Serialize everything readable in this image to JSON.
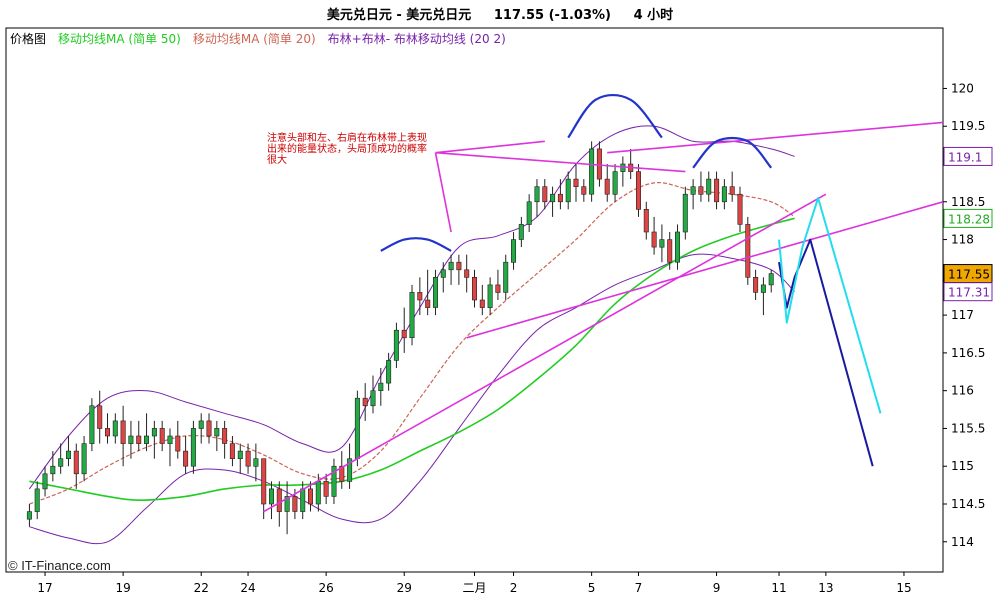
{
  "header": {
    "title": "美元兑日元 - 美元兑日元     117.55 (-1.03%)     4 小时"
  },
  "chart_data": {
    "type": "candlestick",
    "legend": {
      "items": [
        {
          "label": "价格图",
          "color": "#000000"
        },
        {
          "label": "移动均线MA (简单 50)",
          "color": "#22cc22"
        },
        {
          "label": "移动均线MA (简单 20)",
          "color": "#cc6655"
        },
        {
          "label": "布林+布林- 布林移动均线 (20 2)",
          "color": "#7722aa"
        }
      ],
      "placement": "top-left"
    },
    "annotation": "注意头部和左、右肩在布林带上表现出来的能量状态，头局顶成功的概率很大",
    "watermark": "© IT-Finance.com",
    "y_axis": {
      "ticks": [
        120,
        119.5,
        119,
        118.5,
        118,
        117.5,
        117,
        116.5,
        116,
        115.5,
        115,
        114.5,
        114
      ],
      "tick_labels": [
        "120",
        "119.5",
        "",
        "118.5",
        "118",
        "",
        "117",
        "116.5",
        "116",
        "115.5",
        "115",
        "114.5",
        "114"
      ],
      "ylim": [
        113.6,
        120.8
      ],
      "markers": [
        {
          "value": 119.1,
          "label": "119.1",
          "color": "#7722aa"
        },
        {
          "value": 118.28,
          "label": "118.28",
          "color": "#22aa22"
        },
        {
          "value": 117.55,
          "label": "117.55",
          "color": "#000000",
          "fill": "#f0a800"
        },
        {
          "value": 117.31,
          "label": "117.31",
          "color": "#7722aa"
        }
      ]
    },
    "x_axis": {
      "ticks": [
        {
          "index": 2,
          "label": "17"
        },
        {
          "index": 12,
          "label": "19"
        },
        {
          "index": 22,
          "label": "22"
        },
        {
          "index": 28,
          "label": "24"
        },
        {
          "index": 38,
          "label": "26"
        },
        {
          "index": 48,
          "label": "29"
        },
        {
          "index": 57,
          "label": "二月"
        },
        {
          "index": 62,
          "label": "2"
        },
        {
          "index": 72,
          "label": "5"
        },
        {
          "index": 78,
          "label": "7"
        },
        {
          "index": 88,
          "label": "9"
        },
        {
          "index": 96,
          "label": "11"
        },
        {
          "index": 102,
          "label": "13"
        },
        {
          "index": 112,
          "label": "15"
        }
      ],
      "xlim": [
        -3,
        117
      ]
    },
    "candles": [
      [
        114.3,
        114.5,
        114.2,
        114.4
      ],
      [
        114.4,
        114.8,
        114.3,
        114.7
      ],
      [
        114.7,
        115.0,
        114.6,
        114.9
      ],
      [
        114.9,
        115.2,
        114.8,
        115.0
      ],
      [
        115.0,
        115.3,
        114.9,
        115.1
      ],
      [
        115.1,
        115.4,
        115.0,
        115.2
      ],
      [
        115.2,
        115.3,
        114.7,
        114.9
      ],
      [
        114.9,
        115.4,
        114.8,
        115.3
      ],
      [
        115.3,
        115.9,
        115.2,
        115.8
      ],
      [
        115.8,
        116.0,
        115.3,
        115.5
      ],
      [
        115.5,
        115.7,
        115.3,
        115.4
      ],
      [
        115.4,
        115.7,
        115.3,
        115.6
      ],
      [
        115.6,
        115.8,
        115.0,
        115.3
      ],
      [
        115.3,
        115.6,
        115.1,
        115.4
      ],
      [
        115.4,
        115.6,
        115.2,
        115.3
      ],
      [
        115.3,
        115.7,
        115.2,
        115.4
      ],
      [
        115.4,
        115.6,
        115.1,
        115.5
      ],
      [
        115.5,
        115.6,
        115.2,
        115.3
      ],
      [
        115.3,
        115.5,
        115.0,
        115.4
      ],
      [
        115.4,
        115.6,
        115.1,
        115.2
      ],
      [
        115.2,
        115.4,
        114.9,
        115.0
      ],
      [
        115.0,
        115.6,
        114.9,
        115.5
      ],
      [
        115.5,
        115.7,
        115.3,
        115.6
      ],
      [
        115.6,
        115.7,
        115.3,
        115.4
      ],
      [
        115.4,
        115.6,
        115.2,
        115.5
      ],
      [
        115.5,
        115.6,
        115.1,
        115.3
      ],
      [
        115.3,
        115.4,
        115.0,
        115.1
      ],
      [
        115.1,
        115.3,
        114.9,
        115.2
      ],
      [
        115.2,
        115.3,
        114.9,
        115.0
      ],
      [
        115.0,
        115.3,
        114.8,
        115.1
      ],
      [
        115.1,
        115.1,
        114.3,
        114.5
      ],
      [
        114.5,
        114.8,
        114.3,
        114.7
      ],
      [
        114.7,
        114.8,
        114.2,
        114.4
      ],
      [
        114.4,
        114.8,
        114.1,
        114.6
      ],
      [
        114.6,
        114.7,
        114.3,
        114.4
      ],
      [
        114.4,
        114.8,
        114.3,
        114.7
      ],
      [
        114.7,
        114.8,
        114.4,
        114.5
      ],
      [
        114.5,
        114.9,
        114.4,
        114.8
      ],
      [
        114.8,
        114.9,
        114.5,
        114.6
      ],
      [
        114.6,
        115.1,
        114.5,
        115.0
      ],
      [
        115.0,
        115.2,
        114.7,
        114.8
      ],
      [
        114.8,
        115.3,
        114.7,
        115.1
      ],
      [
        115.1,
        116.0,
        115.0,
        115.9
      ],
      [
        115.9,
        116.1,
        115.6,
        115.8
      ],
      [
        115.8,
        116.2,
        115.7,
        116.0
      ],
      [
        116.0,
        116.3,
        115.8,
        116.1
      ],
      [
        116.1,
        116.5,
        116.0,
        116.4
      ],
      [
        116.4,
        116.9,
        116.3,
        116.8
      ],
      [
        116.8,
        117.1,
        116.5,
        116.7
      ],
      [
        116.7,
        117.4,
        116.6,
        117.3
      ],
      [
        117.3,
        117.5,
        117.0,
        117.2
      ],
      [
        117.2,
        117.6,
        117.0,
        117.1
      ],
      [
        117.1,
        117.6,
        117.0,
        117.5
      ],
      [
        117.5,
        117.7,
        117.3,
        117.6
      ],
      [
        117.6,
        117.8,
        117.4,
        117.7
      ],
      [
        117.7,
        117.8,
        117.4,
        117.6
      ],
      [
        117.6,
        117.8,
        117.3,
        117.5
      ],
      [
        117.5,
        117.6,
        117.1,
        117.2
      ],
      [
        117.2,
        117.4,
        117.0,
        117.1
      ],
      [
        117.1,
        117.5,
        117.0,
        117.4
      ],
      [
        117.4,
        117.6,
        117.2,
        117.3
      ],
      [
        117.3,
        117.8,
        117.2,
        117.7
      ],
      [
        117.7,
        118.1,
        117.6,
        118.0
      ],
      [
        118.0,
        118.3,
        117.9,
        118.2
      ],
      [
        118.2,
        118.6,
        118.1,
        118.5
      ],
      [
        118.5,
        118.8,
        118.3,
        118.7
      ],
      [
        118.7,
        118.8,
        118.4,
        118.5
      ],
      [
        118.5,
        118.7,
        118.3,
        118.6
      ],
      [
        118.6,
        118.8,
        118.4,
        118.5
      ],
      [
        118.5,
        118.9,
        118.4,
        118.8
      ],
      [
        118.8,
        119.0,
        118.5,
        118.7
      ],
      [
        118.7,
        118.8,
        118.5,
        118.6
      ],
      [
        118.6,
        119.3,
        118.5,
        119.2
      ],
      [
        119.2,
        119.3,
        118.7,
        118.8
      ],
      [
        118.8,
        119.0,
        118.5,
        118.6
      ],
      [
        118.6,
        119.0,
        118.5,
        118.9
      ],
      [
        118.9,
        119.1,
        118.7,
        119.0
      ],
      [
        119.0,
        119.2,
        118.8,
        118.9
      ],
      [
        118.9,
        119.0,
        118.3,
        118.4
      ],
      [
        118.4,
        118.5,
        118.0,
        118.1
      ],
      [
        118.1,
        118.3,
        117.8,
        117.9
      ],
      [
        117.9,
        118.2,
        117.7,
        118.0
      ],
      [
        118.0,
        118.1,
        117.6,
        117.7
      ],
      [
        117.7,
        118.2,
        117.6,
        118.1
      ],
      [
        118.1,
        118.7,
        118.0,
        118.6
      ],
      [
        118.6,
        118.8,
        118.4,
        118.7
      ],
      [
        118.7,
        118.9,
        118.5,
        118.6
      ],
      [
        118.6,
        118.9,
        118.5,
        118.8
      ],
      [
        118.8,
        118.9,
        118.4,
        118.5
      ],
      [
        118.5,
        118.8,
        118.4,
        118.7
      ],
      [
        118.7,
        118.9,
        118.5,
        118.6
      ],
      [
        118.6,
        118.7,
        118.1,
        118.2
      ],
      [
        118.2,
        118.3,
        117.4,
        117.5
      ],
      [
        117.5,
        117.6,
        117.2,
        117.3
      ],
      [
        117.3,
        117.5,
        117.0,
        117.4
      ],
      [
        117.4,
        117.6,
        117.3,
        117.55
      ]
    ],
    "sma50": [
      [
        0,
        114.8
      ],
      [
        5,
        114.7
      ],
      [
        10,
        114.6
      ],
      [
        14,
        114.55
      ],
      [
        20,
        114.6
      ],
      [
        25,
        114.7
      ],
      [
        30,
        114.75
      ],
      [
        34,
        114.75
      ],
      [
        40,
        114.8
      ],
      [
        45,
        114.95
      ],
      [
        50,
        115.2
      ],
      [
        55,
        115.45
      ],
      [
        60,
        115.75
      ],
      [
        65,
        116.15
      ],
      [
        70,
        116.6
      ],
      [
        75,
        117.15
      ],
      [
        80,
        117.55
      ],
      [
        85,
        117.85
      ],
      [
        90,
        118.05
      ],
      [
        95,
        118.2
      ],
      [
        98,
        118.28
      ]
    ],
    "sma20": [
      [
        0,
        114.5
      ],
      [
        5,
        114.7
      ],
      [
        10,
        115.0
      ],
      [
        15,
        115.25
      ],
      [
        20,
        115.4
      ],
      [
        25,
        115.35
      ],
      [
        30,
        115.15
      ],
      [
        35,
        114.9
      ],
      [
        40,
        114.85
      ],
      [
        45,
        115.2
      ],
      [
        50,
        115.9
      ],
      [
        55,
        116.6
      ],
      [
        60,
        117.1
      ],
      [
        65,
        117.55
      ],
      [
        70,
        118.0
      ],
      [
        75,
        118.5
      ],
      [
        80,
        118.75
      ],
      [
        85,
        118.65
      ],
      [
        90,
        118.6
      ],
      [
        95,
        118.5
      ],
      [
        98,
        118.3
      ]
    ],
    "boll_upper": [
      [
        0,
        114.7
      ],
      [
        5,
        115.4
      ],
      [
        10,
        115.9
      ],
      [
        15,
        116.0
      ],
      [
        20,
        115.85
      ],
      [
        25,
        115.7
      ],
      [
        30,
        115.55
      ],
      [
        35,
        115.3
      ],
      [
        40,
        115.25
      ],
      [
        45,
        116.2
      ],
      [
        50,
        117.1
      ],
      [
        55,
        117.9
      ],
      [
        60,
        118.05
      ],
      [
        65,
        118.3
      ],
      [
        70,
        119.0
      ],
      [
        75,
        119.4
      ],
      [
        80,
        119.5
      ],
      [
        85,
        119.3
      ],
      [
        90,
        119.3
      ],
      [
        95,
        119.2
      ],
      [
        98,
        119.1
      ]
    ],
    "boll_lower": [
      [
        0,
        114.2
      ],
      [
        5,
        114.05
      ],
      [
        10,
        114.0
      ],
      [
        15,
        114.45
      ],
      [
        20,
        114.9
      ],
      [
        25,
        114.95
      ],
      [
        30,
        114.8
      ],
      [
        35,
        114.55
      ],
      [
        40,
        114.3
      ],
      [
        45,
        114.3
      ],
      [
        50,
        114.8
      ],
      [
        55,
        115.5
      ],
      [
        60,
        116.2
      ],
      [
        65,
        116.8
      ],
      [
        70,
        117.1
      ],
      [
        75,
        117.4
      ],
      [
        80,
        117.6
      ],
      [
        85,
        117.8
      ],
      [
        90,
        117.75
      ],
      [
        95,
        117.6
      ],
      [
        98,
        117.31
      ]
    ],
    "trendlines": [
      {
        "points": [
          [
            30,
            114.4
          ],
          [
            102,
            118.6
          ]
        ],
        "color": "#dd33dd"
      },
      {
        "points": [
          [
            56,
            116.7
          ],
          [
            117,
            118.5
          ]
        ],
        "color": "#dd33dd"
      },
      {
        "points": [
          [
            74,
            119.15
          ],
          [
            117,
            119.55
          ]
        ],
        "color": "#dd33dd"
      },
      {
        "points": [
          [
            52,
            119.15
          ],
          [
            66,
            119.3
          ]
        ],
        "color": "#dd33dd"
      },
      {
        "points": [
          [
            52,
            119.15
          ],
          [
            84,
            118.9
          ]
        ],
        "color": "#dd33dd"
      },
      {
        "points": [
          [
            52,
            119.15
          ],
          [
            54,
            118.1
          ]
        ],
        "color": "#dd33dd"
      }
    ],
    "shoulder_arcs": [
      {
        "points": [
          [
            45,
            117.85
          ],
          [
            48,
            118.0
          ],
          [
            51,
            118.0
          ],
          [
            54,
            117.85
          ]
        ],
        "color": "#2233cc"
      },
      {
        "points": [
          [
            69,
            119.35
          ],
          [
            72.5,
            119.85
          ],
          [
            77,
            119.85
          ],
          [
            81,
            119.35
          ]
        ],
        "color": "#2233cc"
      },
      {
        "points": [
          [
            85,
            118.95
          ],
          [
            88,
            119.3
          ],
          [
            92,
            119.3
          ],
          [
            95,
            118.95
          ]
        ],
        "color": "#2233cc"
      }
    ],
    "projections": [
      {
        "points": [
          [
            96,
            117.7
          ],
          [
            97,
            117.1
          ],
          [
            98,
            117.5
          ],
          [
            100,
            118.0
          ],
          [
            108,
            115.0
          ]
        ],
        "color": "#1a1aa0"
      },
      {
        "points": [
          [
            96,
            118.0
          ],
          [
            97,
            116.9
          ],
          [
            99,
            117.9
          ],
          [
            101,
            118.55
          ],
          [
            109,
            115.7
          ]
        ],
        "color": "#22ddee"
      }
    ]
  }
}
